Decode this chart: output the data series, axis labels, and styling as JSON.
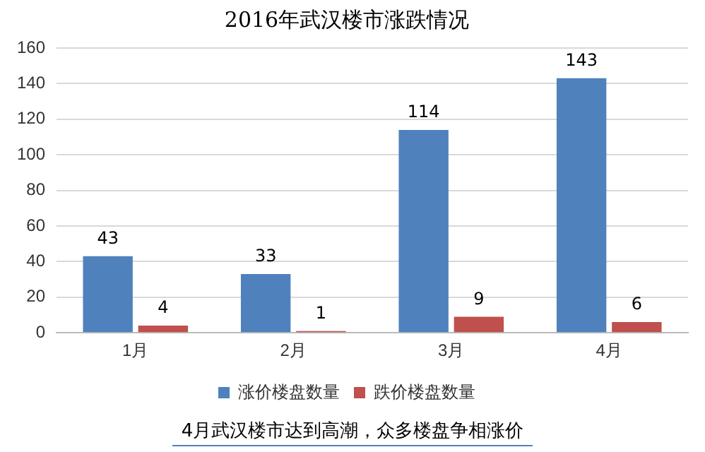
{
  "chart_data": {
    "type": "bar",
    "title": "2016年武汉楼市涨跌情况",
    "categories": [
      "1月",
      "2月",
      "3月",
      "4月"
    ],
    "series": [
      {
        "name": "涨价楼盘数量",
        "color": "#4f81bd",
        "values": [
          43,
          33,
          114,
          143
        ]
      },
      {
        "name": "跌价楼盘数量",
        "color": "#c0504d",
        "values": [
          4,
          1,
          9,
          6
        ]
      }
    ],
    "ylim": [
      0,
      160
    ],
    "yticks": [
      0,
      20,
      40,
      60,
      80,
      100,
      120,
      140,
      160
    ],
    "grid": "y",
    "legend": "bottom",
    "data_labels": true,
    "annotations": [
      "4月武汉楼市达到高潮，众多楼盘争相涨价"
    ]
  }
}
